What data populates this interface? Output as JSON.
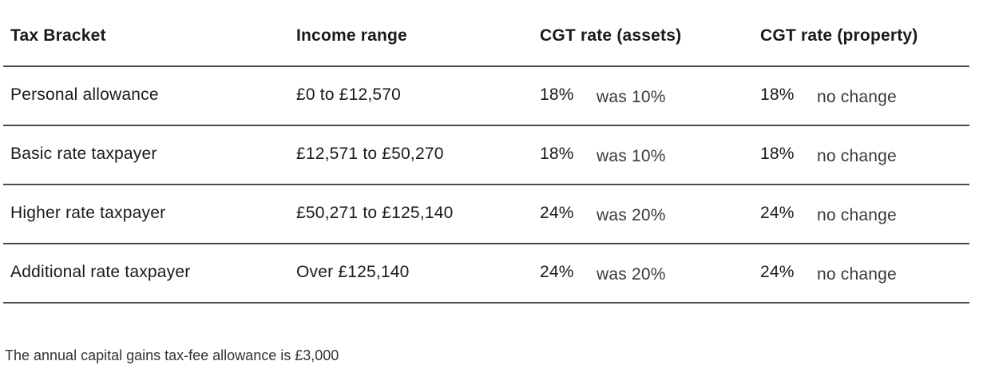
{
  "table": {
    "headers": [
      "Tax Bracket",
      "Income range",
      "CGT rate (assets)",
      "CGT rate (property)"
    ],
    "rows": [
      {
        "bracket": "Personal allowance",
        "income": "£0 to £12,570",
        "assets_rate": "18%",
        "assets_note": "was 10%",
        "property_rate": "18%",
        "property_note": "no change"
      },
      {
        "bracket": "Basic rate taxpayer",
        "income": "£12,571 to £50,270",
        "assets_rate": "18%",
        "assets_note": "was 10%",
        "property_rate": "18%",
        "property_note": "no change"
      },
      {
        "bracket": "Higher rate taxpayer",
        "income": "£50,271 to £125,140",
        "assets_rate": "24%",
        "assets_note": "was 20%",
        "property_rate": "24%",
        "property_note": "no change"
      },
      {
        "bracket": "Additional rate taxpayer",
        "income": "Over £125,140",
        "assets_rate": "24%",
        "assets_note": "was 20%",
        "property_rate": "24%",
        "property_note": "no change"
      }
    ]
  },
  "footnote": "The annual capital gains tax-fee allowance is £3,000"
}
